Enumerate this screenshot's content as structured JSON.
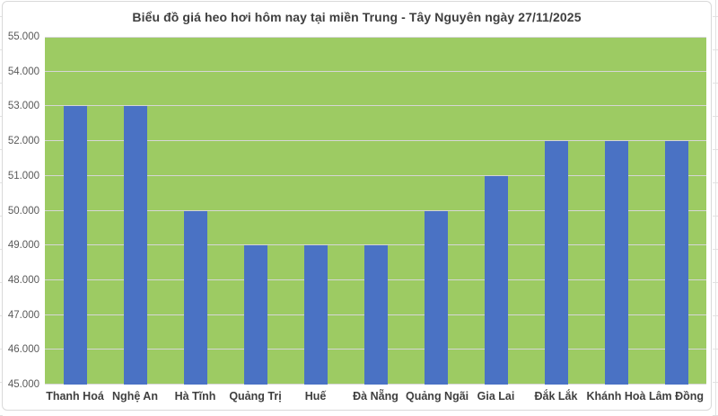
{
  "chart_data": {
    "type": "bar",
    "title": "Biểu đồ giá heo hơi hôm nay tại miền Trung - Tây Nguyên ngày 27/11/2025",
    "categories": [
      "Thanh Hoá",
      "Nghệ An",
      "Hà Tĩnh",
      "Quảng Trị",
      "Huế",
      "Đà Nẵng",
      "Quảng Ngãi",
      "Gia Lai",
      "Đắk Lắk",
      "Khánh Hoà",
      "Lâm Đồng"
    ],
    "values": [
      53000,
      53000,
      50000,
      49000,
      49000,
      49000,
      50000,
      51000,
      52000,
      52000,
      52000
    ],
    "xlabel": "",
    "ylabel": "",
    "ylim": [
      45000,
      55000
    ],
    "ytick_step": 1000,
    "ytick_labels": [
      "45.000",
      "46.000",
      "47.000",
      "48.000",
      "49.000",
      "50.000",
      "51.000",
      "52.000",
      "53.000",
      "54.000",
      "55.000"
    ],
    "grid": true,
    "legend": false,
    "colors": {
      "bar": "#4a72c4",
      "plot_background": "#9dcb63",
      "gridline": "#d6d6d6",
      "frame_border": "#d9d9d9",
      "title_text": "#3f3f3f",
      "y_axis_text": "#595959",
      "x_axis_text": "#3f3f3f",
      "sheet_background": "#ffffff"
    }
  }
}
